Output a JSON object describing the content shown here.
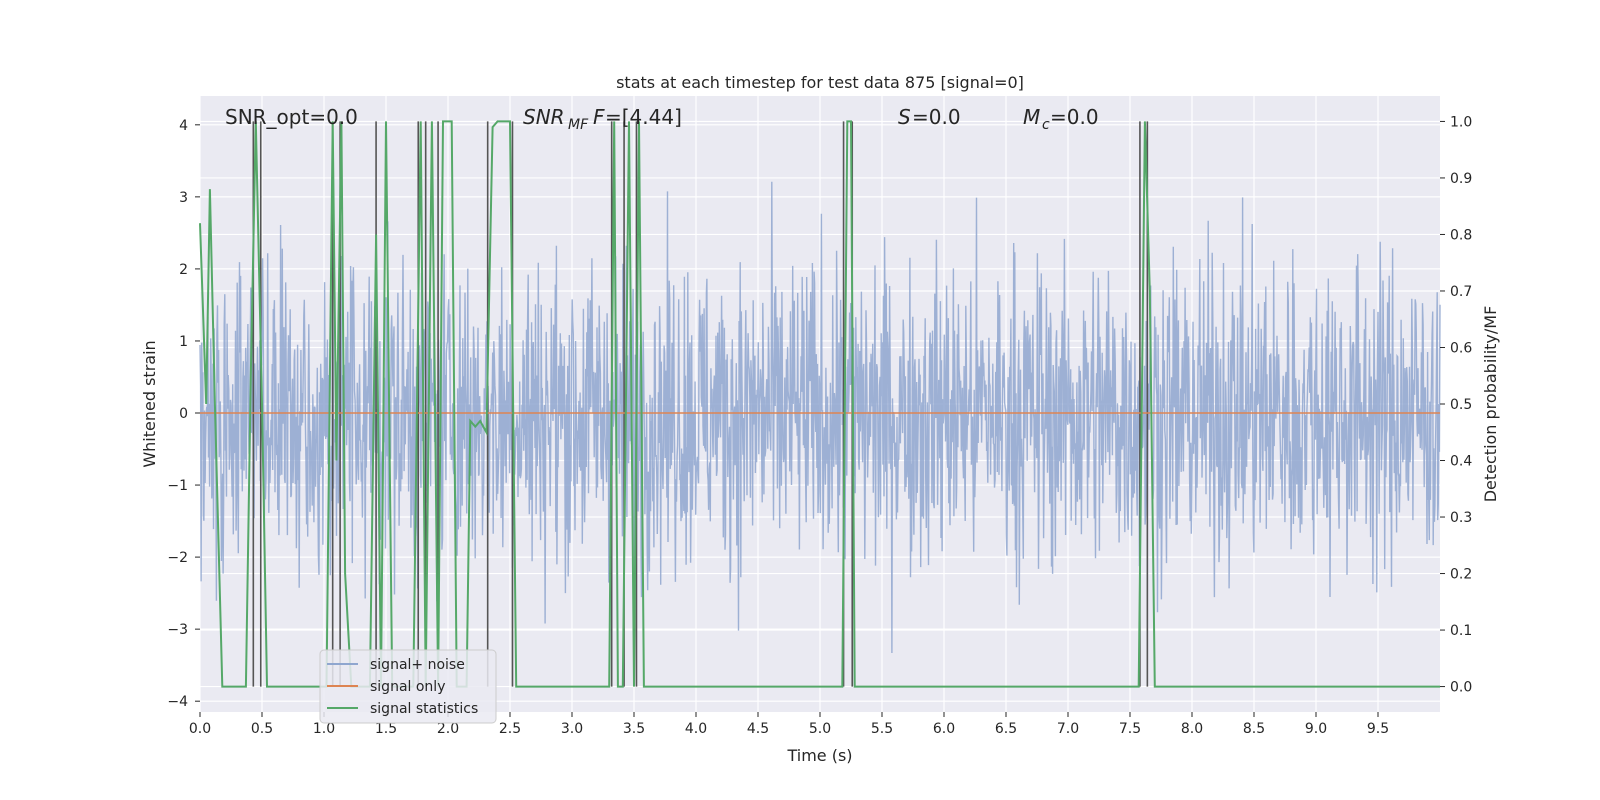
{
  "chart_data": {
    "type": "line",
    "title": "stats at each timestep for test data 875 [signal=0]",
    "xlabel": "Time (s)",
    "ylabel": "Whitened strain",
    "y2label": "Detection probability/MF",
    "xlim": [
      0.0,
      10.0
    ],
    "ylim": [
      -4.15,
      4.4
    ],
    "y2lim": [
      -0.045,
      1.045
    ],
    "grid": true,
    "legend_position": "lower-left",
    "x_ticks": [
      "0.0",
      "0.5",
      "1.0",
      "1.5",
      "2.0",
      "2.5",
      "3.0",
      "3.5",
      "4.0",
      "4.5",
      "5.0",
      "5.5",
      "6.0",
      "6.5",
      "7.0",
      "7.5",
      "8.0",
      "8.5",
      "9.0",
      "9.5"
    ],
    "y_ticks": [
      "−4",
      "−3",
      "−2",
      "−1",
      "0",
      "1",
      "2",
      "3",
      "4"
    ],
    "y2_ticks": [
      "0.0",
      "0.1",
      "0.2",
      "0.3",
      "0.4",
      "0.5",
      "0.6",
      "0.7",
      "0.8",
      "0.9",
      "1.0"
    ],
    "annotations": [
      {
        "text": "SNR_opt=0.0",
        "x": 0.2
      },
      {
        "text": "=[4.44]",
        "x": 2.6
      },
      {
        "text": "=0.0",
        "x": 5.6
      },
      {
        "text": "=0.0",
        "x": 6.6
      }
    ],
    "series": [
      {
        "name": "signal+ noise",
        "axis": "left",
        "color": "#8fa6cf",
        "amplitude_envelope": [
          -3.6,
          4.0
        ],
        "typical_band": [
          -1.4,
          1.7
        ]
      },
      {
        "name": "signal only",
        "axis": "left",
        "color": "#dd8452",
        "values": [
          [
            0.0,
            0.0
          ],
          [
            10.0,
            0.0
          ]
        ]
      },
      {
        "name": "signal statistics",
        "axis": "right",
        "color": "#55a868",
        "x": [
          0.0,
          0.05,
          0.08,
          0.12,
          0.18,
          0.37,
          0.41,
          0.45,
          0.5,
          0.54,
          0.6,
          0.62,
          0.65,
          1.02,
          1.07,
          1.1,
          1.14,
          1.17,
          1.22,
          1.37,
          1.42,
          1.46,
          1.5,
          1.55,
          1.72,
          1.78,
          1.82,
          1.87,
          1.92,
          1.96,
          2.0,
          2.03,
          2.07,
          2.15,
          2.18,
          2.22,
          2.26,
          2.31,
          2.36,
          2.4,
          2.45,
          2.5,
          2.55,
          3.3,
          3.34,
          3.37,
          3.41,
          3.46,
          3.5,
          3.54,
          3.58,
          3.62,
          5.18,
          5.22,
          5.25,
          5.28,
          7.57,
          7.62,
          7.66,
          7.7,
          7.74,
          10.0
        ],
        "values": [
          0.82,
          0.5,
          0.88,
          0.5,
          0.0,
          0.0,
          0.55,
          1.0,
          0.5,
          0.0,
          0.0,
          0.0,
          0.0,
          0.0,
          1.0,
          0.4,
          1.0,
          0.2,
          0.0,
          0.0,
          0.8,
          0.0,
          1.0,
          0.0,
          0.0,
          1.0,
          0.0,
          1.0,
          0.0,
          1.0,
          1.0,
          1.0,
          0.0,
          0.0,
          0.47,
          0.46,
          0.47,
          0.45,
          0.99,
          1.0,
          1.0,
          1.0,
          0.0,
          0.0,
          1.0,
          0.0,
          0.0,
          1.0,
          0.0,
          1.0,
          0.0,
          0.0,
          0.0,
          1.0,
          1.0,
          0.0,
          0.0,
          1.0,
          0.7,
          0.0,
          0.0,
          0.0
        ]
      },
      {
        "name": "",
        "type": "vlines",
        "axis": "right",
        "color": "#555555",
        "range": [
          0.0,
          1.0
        ],
        "x": [
          0.43,
          0.49,
          1.07,
          1.13,
          1.42,
          1.76,
          1.82,
          1.92,
          2.32,
          2.52,
          3.32,
          3.42,
          3.52,
          5.19,
          5.26,
          7.58,
          7.64
        ]
      }
    ]
  }
}
